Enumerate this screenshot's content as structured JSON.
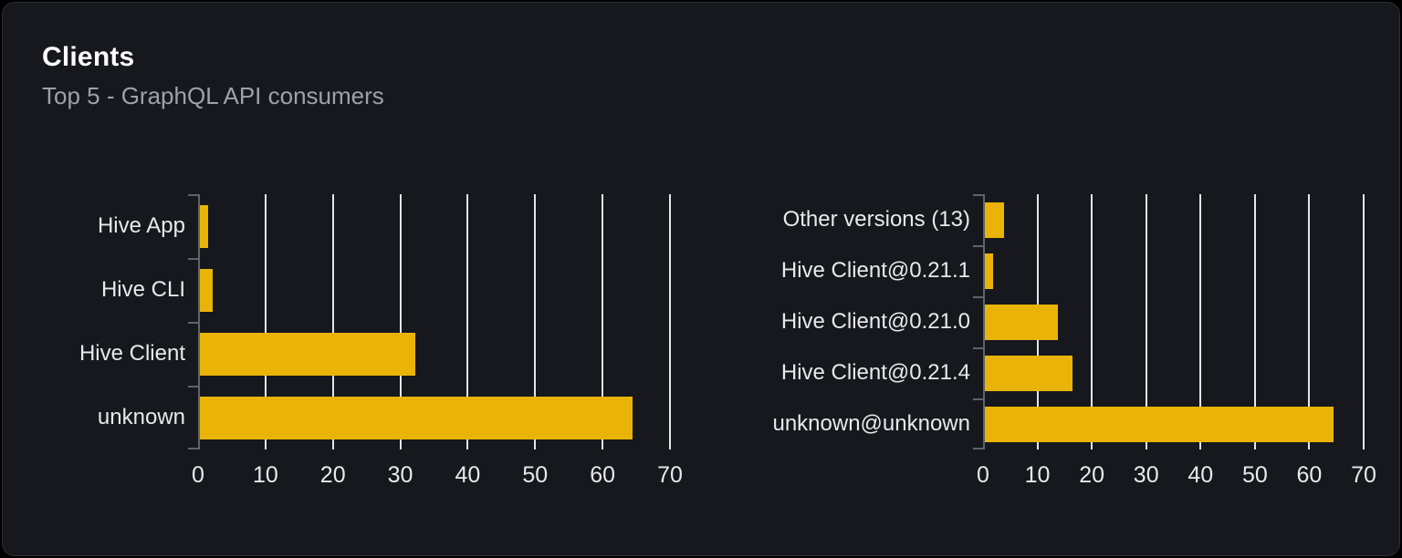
{
  "header": {
    "title": "Clients",
    "subtitle": "Top 5 - GraphQL API consumers"
  },
  "colors": {
    "page_bg": "#000000",
    "card_bg": "#16181d",
    "card_border": "#2a2e35",
    "title": "#ffffff",
    "subtitle": "#9ba2ab",
    "bar": "#eab308",
    "gridline": "#e3e5e9",
    "axis": "#5f646b",
    "tick_label": "#e7e9ec"
  },
  "chart_data": [
    {
      "type": "bar",
      "orientation": "horizontal",
      "name": "clients-by-name",
      "title": "",
      "xlabel": "",
      "ylabel": "",
      "categories": [
        "Hive App",
        "Hive CLI",
        "Hive Client",
        "unknown"
      ],
      "values": [
        1.5,
        2.1,
        32.2,
        64.4
      ],
      "xticks": [
        0,
        10,
        20,
        30,
        40,
        50,
        60,
        70
      ],
      "xlim": [
        0,
        70
      ],
      "grid": true,
      "legend": false,
      "bar_color": "#eab308"
    },
    {
      "type": "bar",
      "orientation": "horizontal",
      "name": "clients-by-version",
      "title": "",
      "xlabel": "",
      "ylabel": "",
      "categories": [
        "Other versions (13)",
        "Hive Client@0.21.1",
        "Hive Client@0.21.0",
        "Hive Client@0.21.4",
        "unknown@unknown"
      ],
      "values": [
        3.9,
        1.9,
        13.8,
        16.4,
        64.4
      ],
      "xticks": [
        0,
        10,
        20,
        30,
        40,
        50,
        60,
        70
      ],
      "xlim": [
        0,
        70
      ],
      "grid": true,
      "legend": false,
      "bar_color": "#eab308"
    }
  ]
}
